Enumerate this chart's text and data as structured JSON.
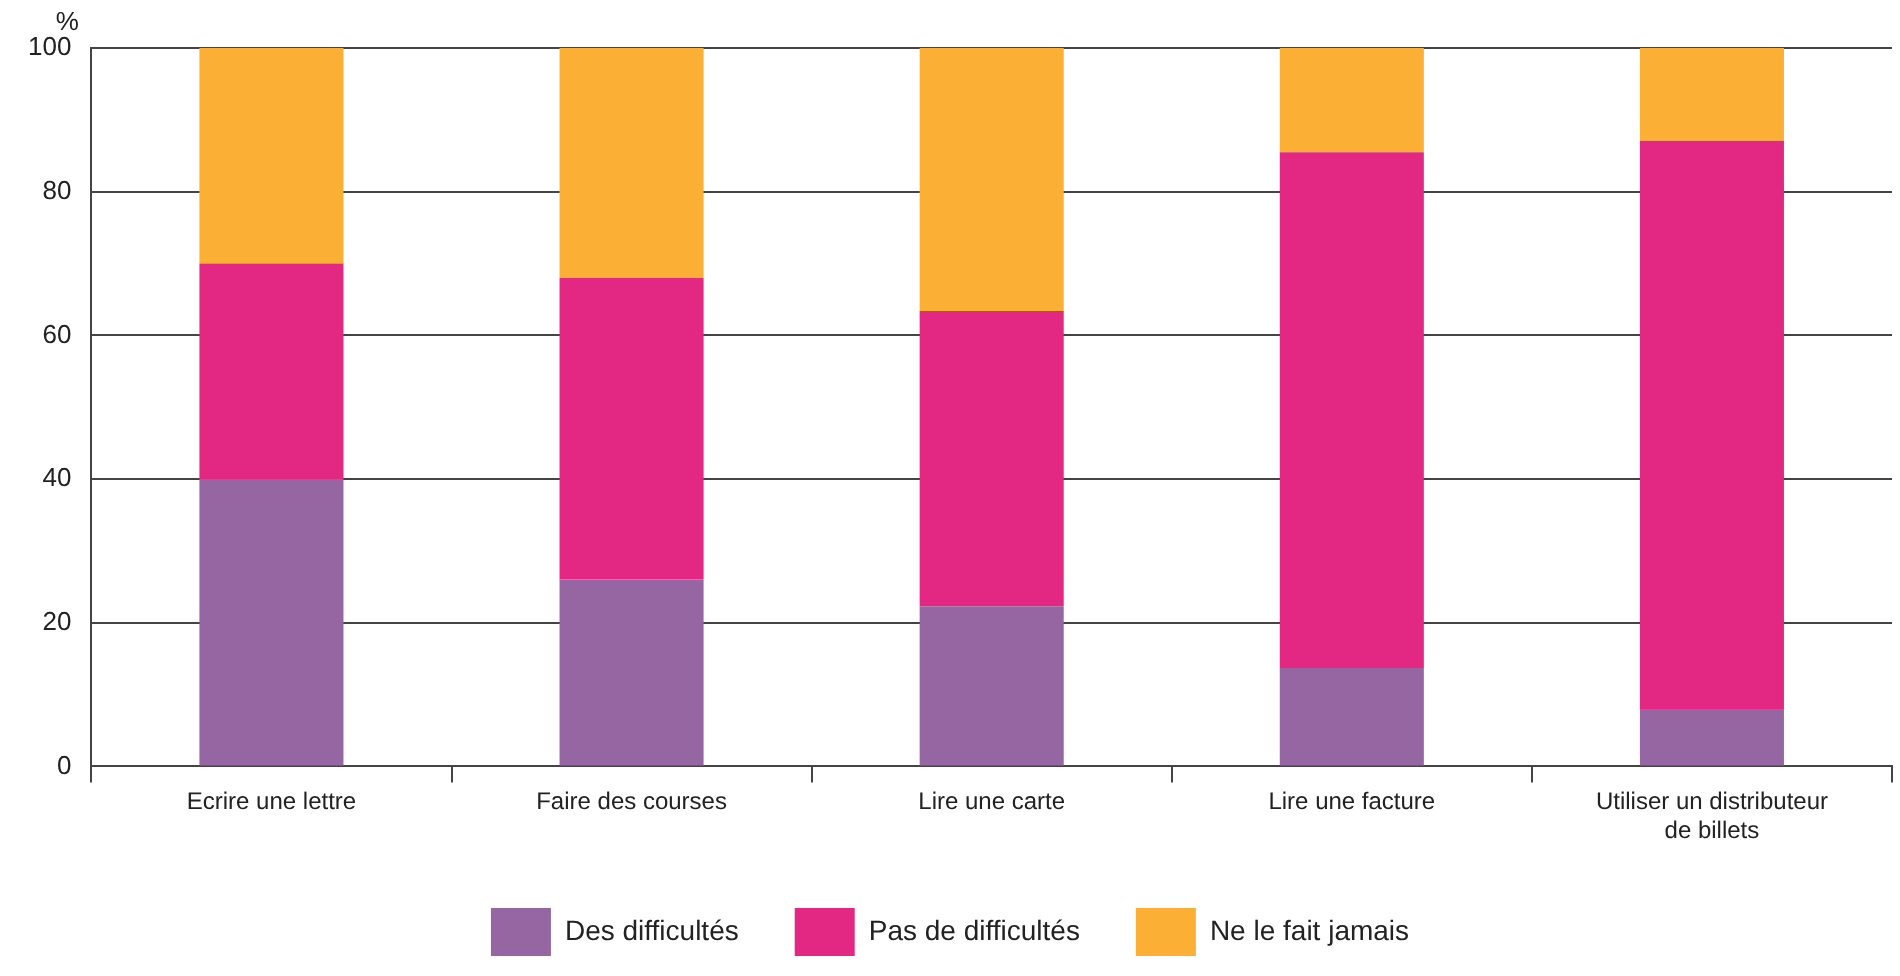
{
  "chart_data": {
    "type": "bar",
    "stacked": true,
    "ylabel": "%",
    "categories": [
      "Ecrire une lettre",
      "Faire des courses",
      "Lire une carte",
      "Lire une facture",
      "Utiliser un distributeur de billets"
    ],
    "series": [
      {
        "name": "Des difficultés",
        "color": "#9566a2",
        "values": [
          40,
          26,
          22.3,
          13.7,
          8
        ]
      },
      {
        "name": "Pas de difficultés",
        "color": "#e22882",
        "values": [
          30,
          42,
          41.1,
          71.8,
          79.1
        ]
      },
      {
        "name": "Ne le fait jamais",
        "color": "#fbaf34",
        "values": [
          30,
          32,
          36.6,
          14.5,
          12.9
        ]
      }
    ],
    "ylim": [
      0,
      100
    ],
    "yticks": [
      0,
      20,
      40,
      60,
      80,
      100
    ],
    "grid": "y",
    "legend": "bottom"
  }
}
